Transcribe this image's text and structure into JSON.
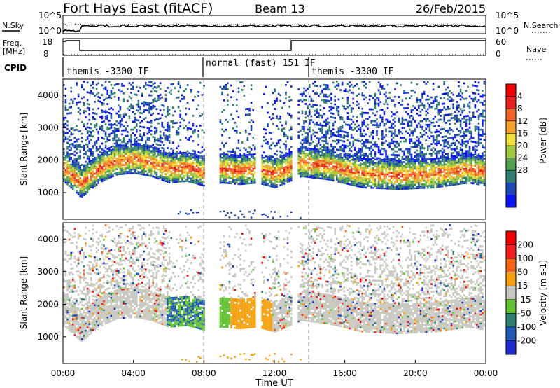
{
  "header": {
    "station": "Fort Hays East (fitACF)",
    "beam": "Beam 13",
    "date": "26/Feb/2015"
  },
  "noise_panel": {
    "left_label": "N.Sky",
    "right_label": "N.Search",
    "left_ticks": [
      "10^5",
      "10^0"
    ],
    "right_ticks": [
      "10^5",
      "10^0"
    ]
  },
  "freq_panel": {
    "left_label_1": "Freq.",
    "left_label_2": "[MHz]",
    "left_ticks": [
      "18",
      "8"
    ],
    "right_label": "Nave",
    "right_ticks": [
      "60",
      "0"
    ]
  },
  "cpid_panel": {
    "label": "CPID",
    "segments": [
      {
        "text": "themis -3300 IF",
        "start_h": 0.0,
        "end_h": 7.9
      },
      {
        "text": "normal (fast) 151 IF",
        "start_h": 7.9,
        "end_h": 13.8
      },
      {
        "text": "themis -3300 IF",
        "start_h": 13.8,
        "end_h": 24.0
      }
    ]
  },
  "x_axis": {
    "label": "Time UT",
    "ticks": [
      "00:00",
      "04:00",
      "08:00",
      "12:00",
      "16:00",
      "20:00",
      "00:00"
    ],
    "tick_hours": [
      0,
      4,
      8,
      12,
      16,
      20,
      24
    ]
  },
  "chart_data": [
    {
      "type": "heatmap",
      "title": "Power",
      "xlabel": "Time UT",
      "ylabel": "Slant Range [km]",
      "xlim": [
        0,
        24
      ],
      "ylim": [
        180,
        4500
      ],
      "y_ticks": [
        1000,
        2000,
        3000,
        4000
      ],
      "colorbar": {
        "label": "Power [dB]",
        "ticks": [
          "4",
          "8",
          "12",
          "16",
          "20",
          "24",
          "28"
        ],
        "colors": [
          "#0a14f0",
          "#1e46b4",
          "#2f7f6e",
          "#53a04f",
          "#a0c840",
          "#f0e03c",
          "#f5a02a",
          "#f06428",
          "#e8201e",
          "#f00000"
        ]
      },
      "series": [
        {
          "name": "main band",
          "approx_range_km": [
            [
              0.0,
              1750
            ],
            [
              1.0,
              1250
            ],
            [
              2.0,
              1700
            ],
            [
              3.0,
              1950
            ],
            [
              4.0,
              2000
            ],
            [
              5.0,
              1900
            ],
            [
              6.0,
              1700
            ],
            [
              7.0,
              1750
            ],
            [
              8.0,
              1600
            ],
            [
              9.0,
              1700
            ],
            [
              10.0,
              1650
            ],
            [
              11.0,
              1700
            ],
            [
              12.0,
              1550
            ],
            [
              13.5,
              1900
            ],
            [
              15.0,
              1800
            ],
            [
              17.0,
              1550
            ],
            [
              19.0,
              1500
            ],
            [
              21.0,
              1550
            ],
            [
              23.0,
              1700
            ],
            [
              24.0,
              1600
            ]
          ]
        }
      ]
    },
    {
      "type": "heatmap",
      "title": "Velocity",
      "xlabel": "Time UT",
      "ylabel": "Slant Range [km]",
      "xlim": [
        0,
        24
      ],
      "ylim": [
        180,
        4500
      ],
      "y_ticks": [
        1000,
        2000,
        3000,
        4000
      ],
      "colorbar": {
        "label": "Velocity [m s-1]",
        "ticks": [
          "200",
          "100",
          "50",
          "15",
          "-15",
          "-50",
          "-100",
          "-200"
        ],
        "colors": [
          "#1e2ad2",
          "#1e5ab4",
          "#2f7f6e",
          "#62c231",
          "#c8c8c0",
          "#f5a00f",
          "#f56414",
          "#f51e1e",
          "#f00000"
        ]
      }
    }
  ]
}
